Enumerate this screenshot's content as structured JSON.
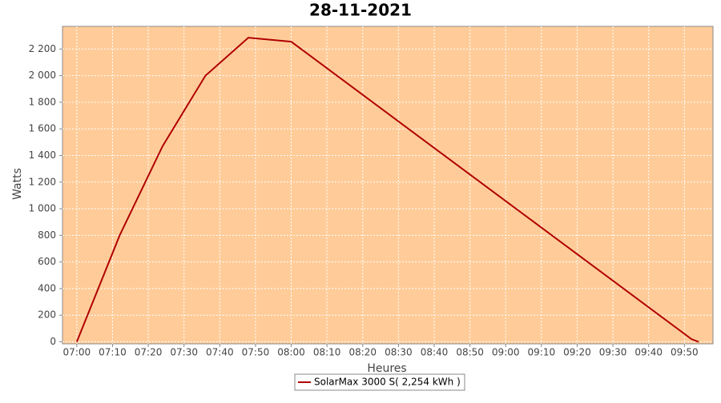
{
  "chart_data": {
    "type": "line",
    "title": "28-11-2021",
    "x_label": "Heures",
    "y_label": "Watts",
    "x": [
      "07:00",
      "07:12",
      "07:24",
      "07:36",
      "07:48",
      "08:00",
      "09:52",
      "09:54"
    ],
    "series": [
      {
        "name": "SolarMax 3000 S( 2,254 kWh )",
        "color": "#b00000",
        "values": [
          0,
          800,
          1470,
          2000,
          2285,
          2255,
          20,
          0
        ]
      }
    ],
    "xlim": [
      "06:56",
      "09:58"
    ],
    "xticks": [
      "07:00",
      "07:10",
      "07:20",
      "07:30",
      "07:40",
      "07:50",
      "08:00",
      "08:10",
      "08:20",
      "08:30",
      "08:40",
      "08:50",
      "09:00",
      "09:10",
      "09:20",
      "09:30",
      "09:40",
      "09:50"
    ],
    "ylim": [
      -15,
      2370
    ],
    "yticks": [
      0,
      200,
      400,
      600,
      800,
      {
        "value": 1000,
        "label": "1 000"
      },
      {
        "value": 1200,
        "label": "1 200"
      },
      {
        "value": 1400,
        "label": "1 400"
      },
      {
        "value": 1600,
        "label": "1 600"
      },
      {
        "value": 1800,
        "label": "1 800"
      },
      {
        "value": 2000,
        "label": "2 000"
      },
      {
        "value": 2200,
        "label": "2 200"
      }
    ],
    "grid": true,
    "plot_background": "#ffcc99",
    "legend": "bottom"
  }
}
